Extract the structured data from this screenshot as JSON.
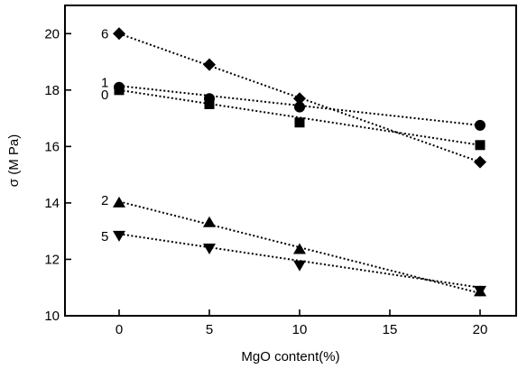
{
  "chart_data": {
    "type": "scatter",
    "xlabel": "MgO content(%)",
    "ylabel": "σ (M Pa)",
    "xlim": [
      -3,
      22
    ],
    "ylim": [
      10,
      21
    ],
    "xticks": [
      0,
      5,
      10,
      15,
      20
    ],
    "yticks": [
      10,
      12,
      14,
      16,
      18,
      20
    ],
    "grid": false,
    "series": [
      {
        "name": "6",
        "marker": "diamond",
        "x": [
          0,
          5,
          10,
          20
        ],
        "y": [
          20.0,
          18.9,
          17.7,
          15.45
        ],
        "trend": [
          20.0,
          15.45
        ]
      },
      {
        "name": "1",
        "marker": "circle",
        "x": [
          0,
          5,
          10,
          20
        ],
        "y": [
          18.1,
          17.7,
          17.4,
          16.75
        ],
        "trend": [
          18.15,
          16.75
        ]
      },
      {
        "name": "0",
        "marker": "square",
        "x": [
          0,
          5,
          10,
          20
        ],
        "y": [
          18.0,
          17.5,
          16.85,
          16.05
        ],
        "trend": [
          18.0,
          16.05
        ]
      },
      {
        "name": "2",
        "marker": "triangle-up",
        "x": [
          0,
          5,
          10,
          20
        ],
        "y": [
          14.0,
          13.3,
          12.35,
          10.85
        ],
        "trend": [
          14.05,
          10.8
        ]
      },
      {
        "name": "5",
        "marker": "triangle-down",
        "x": [
          0,
          5,
          10,
          20
        ],
        "y": [
          12.85,
          12.4,
          11.8,
          10.9
        ],
        "trend": [
          12.9,
          11.0
        ]
      }
    ]
  }
}
